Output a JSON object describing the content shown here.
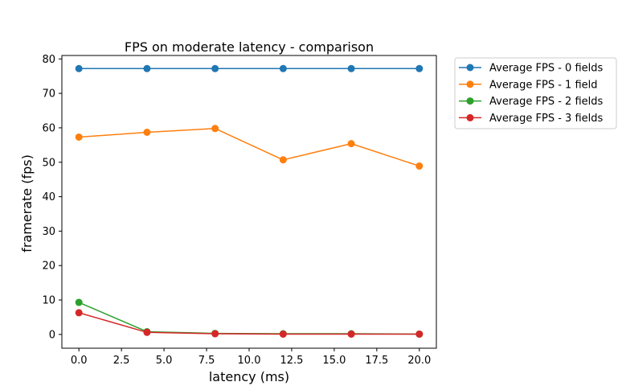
{
  "chart_data": {
    "type": "line",
    "title": "FPS on moderate latency - comparison",
    "xlabel": "latency (ms)",
    "ylabel": "framerate (fps)",
    "xlim": [
      -1,
      21
    ],
    "ylim": [
      -4,
      81
    ],
    "x_ticks": [
      "0.0",
      "2.5",
      "5.0",
      "7.5",
      "10.0",
      "12.5",
      "15.0",
      "17.5",
      "20.0"
    ],
    "y_ticks": [
      "0",
      "10",
      "20",
      "30",
      "40",
      "50",
      "60",
      "70",
      "80"
    ],
    "grid": false,
    "legend_position": "outside-top-right",
    "x": [
      0,
      4,
      8,
      12,
      16,
      20
    ],
    "series": [
      {
        "name": "Average FPS - 0 fields",
        "color": "#1f77b4",
        "values": [
          77.2,
          77.2,
          77.2,
          77.2,
          77.2,
          77.2
        ]
      },
      {
        "name": "Average FPS - 1 field",
        "color": "#ff7f0e",
        "values": [
          57.3,
          58.7,
          59.8,
          50.7,
          55.4,
          48.9
        ]
      },
      {
        "name": "Average FPS - 2 fields",
        "color": "#2ca02c",
        "values": [
          9.3,
          0.8,
          0.3,
          0.2,
          0.2,
          0.1
        ]
      },
      {
        "name": "Average FPS - 3 fields",
        "color": "#d62728",
        "values": [
          6.3,
          0.6,
          0.2,
          0.1,
          0.1,
          0.1
        ]
      }
    ]
  }
}
